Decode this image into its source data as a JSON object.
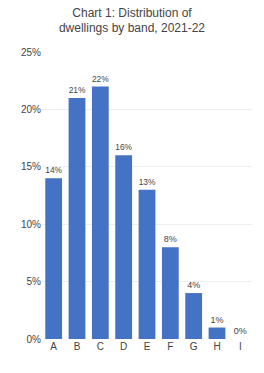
{
  "chart_data": {
    "type": "bar",
    "title": "Chart 1: Distribution of dwellings by band, 2021-22",
    "categories": [
      "A",
      "B",
      "C",
      "D",
      "E",
      "F",
      "G",
      "H",
      "I"
    ],
    "values": [
      14,
      21,
      22,
      16,
      13,
      8,
      4,
      1,
      0
    ],
    "value_labels": [
      "14%",
      "21%",
      "22%",
      "16%",
      "13%",
      "8%",
      "4%",
      "1%",
      "0%"
    ],
    "data_labels": true,
    "color": "#4472C4",
    "ylim": [
      0,
      25
    ],
    "yticks": [
      {
        "value": 0,
        "label": "0%"
      },
      {
        "value": 5,
        "label": "5%"
      },
      {
        "value": 10,
        "label": "10%"
      },
      {
        "value": 15,
        "label": "15%"
      },
      {
        "value": 20,
        "label": "20%"
      },
      {
        "value": 25,
        "label": "25%"
      }
    ],
    "grid": true
  }
}
